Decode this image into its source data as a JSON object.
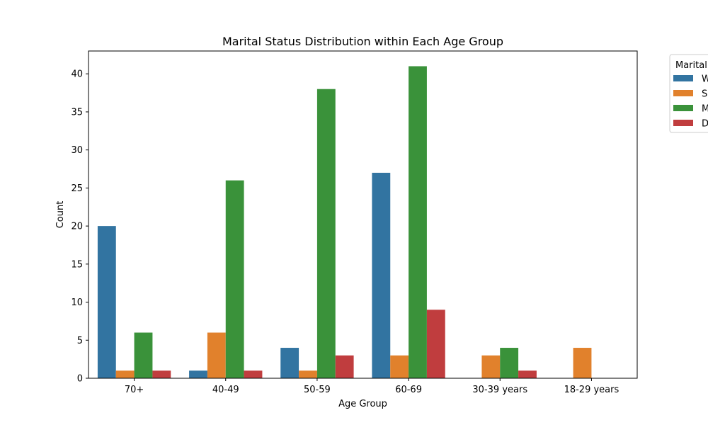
{
  "chart_data": {
    "type": "bar",
    "title": "Marital Status Distribution within Each Age Group",
    "xlabel": "Age Group",
    "ylabel": "Count",
    "categories": [
      "70+",
      "40-49",
      "50-59",
      "60-69",
      "30-39 years",
      "18-29 years"
    ],
    "ylim": [
      0,
      43
    ],
    "yticks": [
      0,
      5,
      10,
      15,
      20,
      25,
      30,
      35,
      40
    ],
    "legend_title": "Marital",
    "legend_position": "outside upper right (clipped)",
    "series": [
      {
        "name": "W",
        "color": "#3274a1",
        "values": [
          20,
          1,
          4,
          27,
          0,
          0
        ]
      },
      {
        "name": "S",
        "color": "#e1812c",
        "values": [
          1,
          6,
          1,
          3,
          3,
          4
        ]
      },
      {
        "name": "M",
        "color": "#3a923a",
        "values": [
          6,
          26,
          38,
          41,
          4,
          0
        ]
      },
      {
        "name": "D",
        "color": "#c03d3e",
        "values": [
          1,
          1,
          3,
          9,
          1,
          0
        ]
      }
    ],
    "grid": false
  }
}
